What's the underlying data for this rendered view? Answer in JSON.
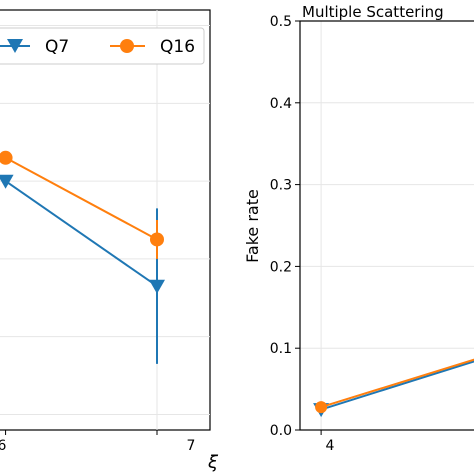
{
  "chart_data": [
    {
      "type": "line",
      "title": "",
      "xlabel": "ξ",
      "ylabel": "",
      "xlim": [
        5.95,
        7.35
      ],
      "ylim": [
        0.28,
        0.82
      ],
      "x_tick_labels": [
        "6",
        "7"
      ],
      "grid": true,
      "legend": {
        "placement": "top",
        "entries": [
          "Q7",
          "Q16"
        ]
      },
      "series": [
        {
          "name": "Q7",
          "color": "#1f77b4",
          "marker": "triangle-down",
          "x": [
            6,
            7
          ],
          "y": [
            0.6,
            0.465
          ],
          "yerr": [
            0,
            0.1
          ]
        },
        {
          "name": "Q16",
          "color": "#ff7f0e",
          "marker": "circle",
          "x": [
            6,
            7
          ],
          "y": [
            0.63,
            0.525
          ],
          "yerr": [
            0,
            0.025
          ]
        }
      ]
    },
    {
      "type": "line",
      "title": "Multiple Scattering",
      "xlabel": "",
      "ylabel": "Fake rate",
      "xlim": [
        3.75,
        6
      ],
      "ylim": [
        0,
        0.5
      ],
      "y_tick_labels": [
        "0.0",
        "0.1",
        "0.2",
        "0.3",
        "0.4",
        "0.5"
      ],
      "x_tick_labels": [
        "4"
      ],
      "grid": true,
      "series": [
        {
          "name": "",
          "color": "#1f77b4",
          "marker": "triangle-down",
          "x": [
            4,
            6
          ],
          "y": [
            0.025,
            0.09
          ]
        },
        {
          "name": "",
          "color": "#ff7f0e",
          "marker": "circle",
          "x": [
            4,
            6
          ],
          "y": [
            0.028,
            0.092
          ]
        }
      ]
    }
  ]
}
